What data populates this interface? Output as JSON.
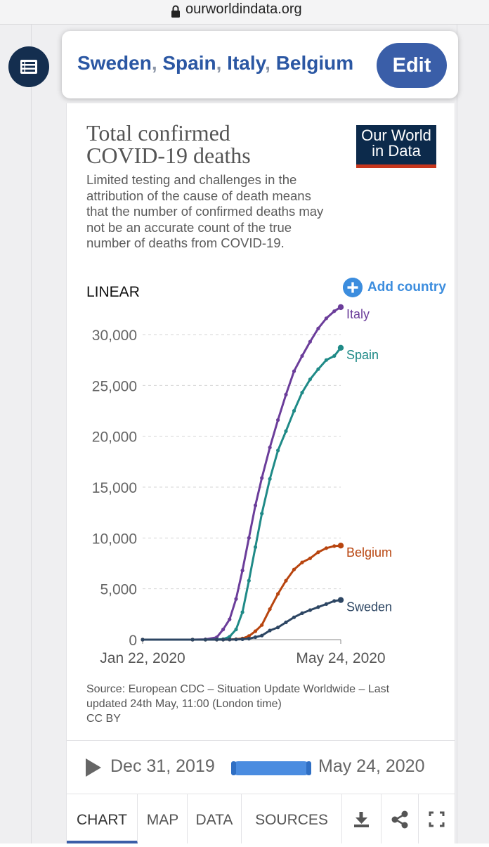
{
  "browser": {
    "url": "ourworldindata.org"
  },
  "selector": {
    "countries": [
      "Sweden",
      "Spain",
      "Italy",
      "Belgium"
    ],
    "edit_label": "Edit"
  },
  "logo": {
    "line1": "Our World",
    "line2": "in Data"
  },
  "controls": {
    "scale_label": "LINEAR",
    "add_country_label": "Add country"
  },
  "timeline": {
    "start_label": "Dec 31, 2019",
    "end_label": "May 24, 2020"
  },
  "tabs": {
    "chart": "CHART",
    "map": "MAP",
    "data": "DATA",
    "sources": "SOURCES"
  },
  "icons": [
    "list-icon",
    "lock-icon",
    "plus-icon",
    "play-icon",
    "download-icon",
    "share-icon",
    "fullscreen-icon"
  ],
  "colors": {
    "italy": "#6b3d9a",
    "spain": "#1f8a87",
    "belgium": "#b8450f",
    "sweden": "#2d4663",
    "accent": "#3a5ea8",
    "link": "#3c8dde"
  },
  "chart_data": {
    "type": "line",
    "title": "Total confirmed COVID-19 deaths",
    "subtitle": "Limited testing and challenges in the attribution of the cause of death means that the number of confirmed deaths may not be an accurate count of the true number of deaths from COVID-19.",
    "source": "Source: European CDC – Situation Update Worldwide – Last updated 24th May, 11:00 (London time)",
    "license": "CC BY",
    "x_labels": [
      "Jan 22, 2020",
      "May 24, 2020"
    ],
    "y_ticks": [
      "0",
      "5,000",
      "10,000",
      "15,000",
      "20,000",
      "25,000",
      "30,000"
    ],
    "ylim": [
      0,
      30000
    ],
    "grid": true,
    "x": [
      "2020-01-22",
      "2020-02-22",
      "2020-03-01",
      "2020-03-08",
      "2020-03-12",
      "2020-03-16",
      "2020-03-20",
      "2020-03-24",
      "2020-03-28",
      "2020-04-01",
      "2020-04-05",
      "2020-04-10",
      "2020-04-15",
      "2020-04-20",
      "2020-04-25",
      "2020-04-30",
      "2020-05-05",
      "2020-05-10",
      "2020-05-15",
      "2020-05-20",
      "2020-05-24"
    ],
    "series": [
      {
        "name": "Italy",
        "values": [
          0,
          0,
          30,
          230,
          1000,
          2000,
          4000,
          6800,
          10000,
          13200,
          15900,
          18900,
          21600,
          24100,
          26400,
          27900,
          29300,
          30600,
          31600,
          32300,
          32700
        ]
      },
      {
        "name": "Spain",
        "values": [
          0,
          0,
          0,
          20,
          50,
          290,
          1000,
          2700,
          5800,
          9100,
          12400,
          15800,
          18600,
          20500,
          22500,
          24300,
          25600,
          26600,
          27500,
          27900,
          28700
        ]
      },
      {
        "name": "Belgium",
        "values": [
          0,
          0,
          0,
          0,
          0,
          10,
          40,
          120,
          350,
          830,
          1440,
          3000,
          4500,
          5800,
          6900,
          7600,
          8000,
          8600,
          9000,
          9200,
          9250
        ]
      },
      {
        "name": "Sweden",
        "values": [
          0,
          0,
          0,
          0,
          1,
          10,
          20,
          40,
          100,
          240,
          400,
          900,
          1200,
          1700,
          2200,
          2600,
          2900,
          3200,
          3500,
          3800,
          3900
        ]
      }
    ]
  }
}
